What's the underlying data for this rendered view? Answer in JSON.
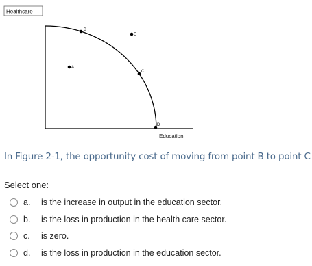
{
  "figure": {
    "y_axis_label": "Healthcare",
    "x_axis_label": "Education",
    "points": [
      {
        "label": "B"
      },
      {
        "label": "E"
      },
      {
        "label": "A"
      },
      {
        "label": "C"
      },
      {
        "label": "D"
      }
    ]
  },
  "question": "In Figure 2-1, the opportunity cost of moving from point B to point C",
  "prompt": "Select one:",
  "options": [
    {
      "letter": "a.",
      "text": "is the increase in output in the education sector."
    },
    {
      "letter": "b.",
      "text": "is the loss in production in the health care sector."
    },
    {
      "letter": "c.",
      "text": "is zero."
    },
    {
      "letter": "d.",
      "text": "is the loss in production in the education sector."
    }
  ]
}
